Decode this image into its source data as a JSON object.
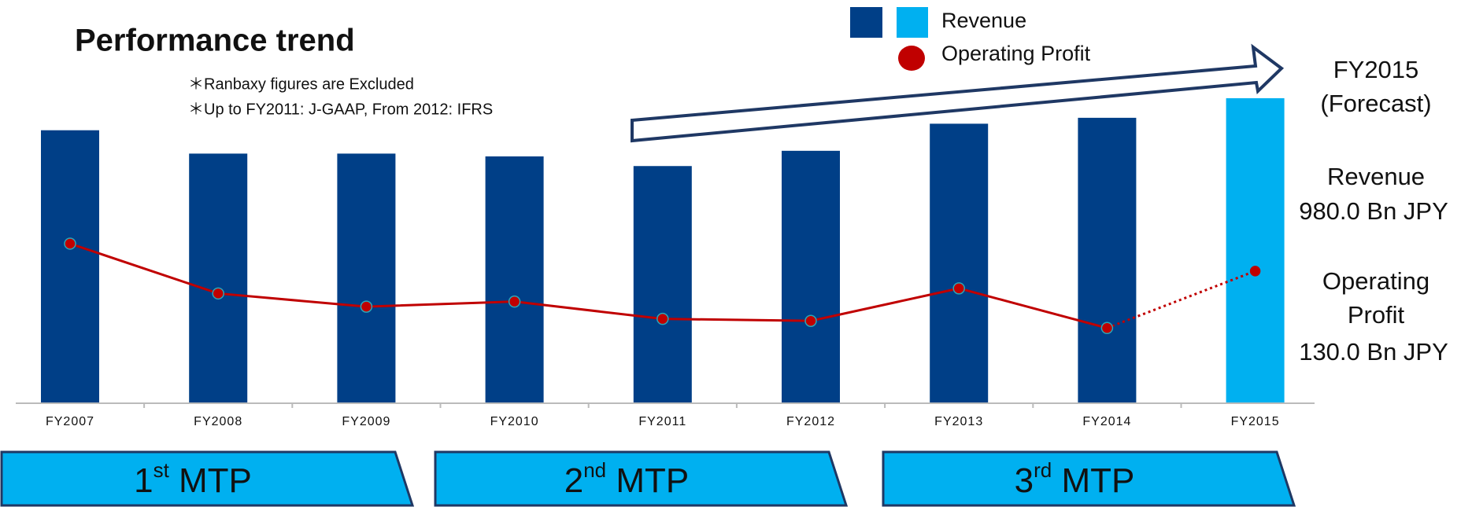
{
  "chart_data": {
    "type": "bar_line",
    "title": "Performance trend",
    "notes": [
      "＊Ranbaxy figures are Excluded",
      "＊Up to FY2011: J-GAAP, From 2012: IFRS"
    ],
    "categories": [
      "FY2007",
      "FY2008",
      "FY2009",
      "FY2010",
      "FY2011",
      "FY2012",
      "FY2013",
      "FY2014",
      "FY2015"
    ],
    "forecast_category": "FY2015",
    "forecast_note": "(Forecast)",
    "series": [
      {
        "name": "Revenue",
        "type": "bar",
        "color": "#003f87",
        "forecast_color": "#00b0f0",
        "values": [
          877,
          802,
          802,
          793,
          762,
          811,
          898,
          917,
          980
        ],
        "value_labels": [
          null,
          null,
          null,
          null,
          null,
          null,
          null,
          null,
          "980.0 Bn JPY"
        ]
      },
      {
        "name": "Operating Profit",
        "type": "line",
        "axis": "y2",
        "color": "#c00000",
        "marker_edge": "#2aa6b8",
        "values": [
          157,
          108,
          95,
          100,
          83,
          81,
          113,
          74,
          130
        ],
        "value_labels": [
          null,
          null,
          null,
          null,
          null,
          null,
          null,
          null,
          "130.0 Bn JPY"
        ]
      }
    ],
    "annotation_lines": [
      "Revenue",
      "Operating",
      "Profit"
    ],
    "ylim": [
      0,
      1000
    ],
    "y2lim": [
      0,
      150
    ],
    "phases": [
      {
        "number": "1",
        "suffix": "st",
        "label": "MTP"
      },
      {
        "number": "2",
        "suffix": "nd",
        "label": "MTP"
      },
      {
        "number": "3",
        "suffix": "rd",
        "label": "MTP"
      }
    ]
  }
}
